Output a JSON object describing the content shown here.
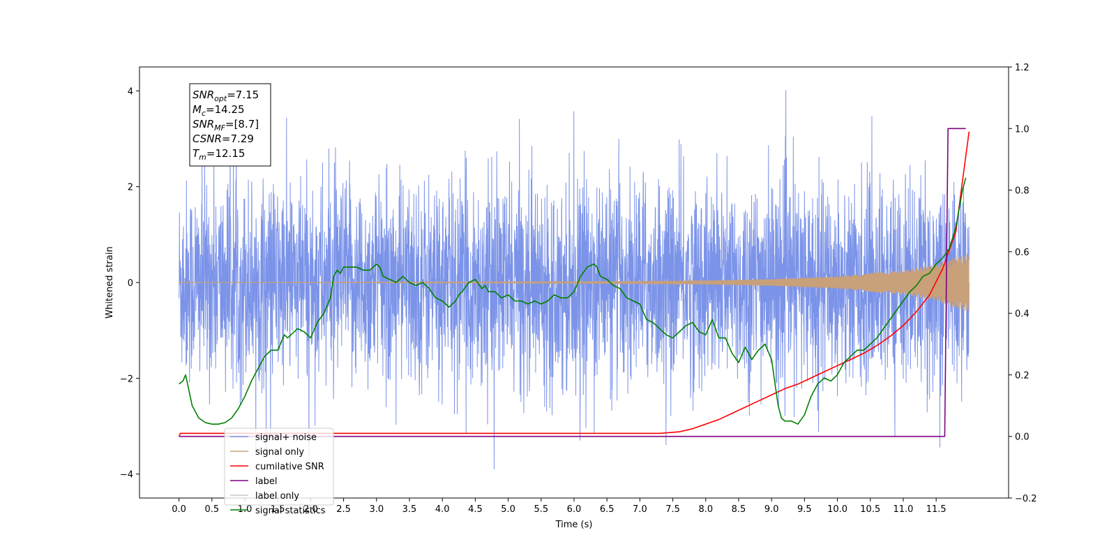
{
  "chart_data": {
    "type": "line",
    "xlabel": "Time (s)",
    "ylabel": "Whitened strain",
    "ylabel_right": "",
    "xlim": [
      -0.6,
      12.6
    ],
    "ylim": [
      -4.5,
      4.5
    ],
    "ylim_right": [
      -0.2,
      1.2
    ],
    "x_ticks": [
      0.0,
      0.5,
      1.0,
      1.5,
      2.0,
      2.5,
      3.0,
      3.5,
      4.0,
      4.5,
      5.0,
      5.5,
      6.0,
      6.5,
      7.0,
      7.5,
      8.0,
      8.5,
      9.0,
      9.5,
      10.0,
      10.5,
      11.0,
      11.5
    ],
    "x_tick_labels": [
      "0.0",
      "0.5",
      "1.0",
      "1.5",
      "2.0",
      "2.5",
      "3.0",
      "3.5",
      "4.0",
      "4.5",
      "5.0",
      "5.5",
      "6.0",
      "6.5",
      "7.0",
      "7.5",
      "8.0",
      "8.5",
      "9.0",
      "9.5",
      "10.0",
      "10.5",
      "11.0",
      "11.5"
    ],
    "y_ticks": [
      -4,
      -2,
      0,
      2,
      4
    ],
    "y_tick_labels": [
      "−4",
      "−2",
      "0",
      "2",
      "4"
    ],
    "y_right_ticks": [
      -0.2,
      0.0,
      0.2,
      0.4,
      0.6,
      0.8,
      1.0,
      1.2
    ],
    "y_right_tick_labels": [
      "−0.2",
      "0.0",
      "0.2",
      "0.4",
      "0.6",
      "0.8",
      "1.0",
      "1.2"
    ],
    "grid": false,
    "legend_position": "lower-left",
    "info_box": {
      "lines": [
        {
          "base": "SNR",
          "sub": "opt",
          "rest": "=7.15"
        },
        {
          "base": "M",
          "sub": "c",
          "rest": "=14.25"
        },
        {
          "base": "SNR",
          "sub": "MF",
          "rest": "=[8.7]"
        },
        {
          "base": "CSNR",
          "sub": "",
          "rest": "=7.29"
        },
        {
          "base": "T",
          "sub": "m",
          "rest": "=12.15"
        }
      ]
    },
    "series": [
      {
        "name": "signal+ noise",
        "color": "#7b93e8",
        "axis": "left",
        "kind": "noise",
        "x_range": [
          0.0,
          12.0
        ],
        "envelope_typical": 2.2,
        "envelope_max": 4.1,
        "envelope_min": -3.9
      },
      {
        "name": "signal only",
        "color": "#c8a07a",
        "axis": "left",
        "kind": "chirp",
        "x_range": [
          0.0,
          12.0
        ],
        "amplitude_points": [
          [
            0.0,
            0.0
          ],
          [
            7.0,
            0.02
          ],
          [
            8.0,
            0.04
          ],
          [
            9.0,
            0.07
          ],
          [
            10.0,
            0.13
          ],
          [
            11.0,
            0.25
          ],
          [
            11.5,
            0.38
          ],
          [
            12.0,
            0.62
          ]
        ]
      },
      {
        "name": "cumilative SNR",
        "color": "#ff0000",
        "axis": "right",
        "x": [
          0.0,
          0.02,
          1.0,
          2.0,
          3.0,
          4.0,
          5.0,
          6.0,
          7.0,
          7.3,
          7.6,
          7.8,
          8.0,
          8.2,
          8.4,
          8.6,
          8.8,
          9.0,
          9.2,
          9.4,
          9.6,
          9.8,
          10.0,
          10.2,
          10.4,
          10.6,
          10.8,
          11.0,
          11.2,
          11.4,
          11.6,
          11.8,
          11.9,
          12.0
        ],
        "y": [
          0.0,
          0.01,
          0.01,
          0.01,
          0.01,
          0.01,
          0.01,
          0.01,
          0.01,
          0.01,
          0.015,
          0.025,
          0.04,
          0.055,
          0.075,
          0.095,
          0.115,
          0.135,
          0.155,
          0.17,
          0.19,
          0.21,
          0.23,
          0.25,
          0.27,
          0.295,
          0.325,
          0.36,
          0.405,
          0.46,
          0.545,
          0.665,
          0.83,
          0.99
        ]
      },
      {
        "name": "label",
        "color": "#800080",
        "axis": "right",
        "x": [
          0.0,
          11.63,
          11.68,
          11.68,
          11.95
        ],
        "y": [
          0.0,
          0.0,
          1.0,
          1.0,
          1.0
        ]
      },
      {
        "name": "label only",
        "color": "#c8c8c8",
        "axis": "right",
        "hidden_in_plot": true,
        "x": [],
        "y": []
      },
      {
        "name": "signal statistics",
        "color": "#008000",
        "axis": "right",
        "x": [
          0.0,
          0.06,
          0.1,
          0.2,
          0.3,
          0.4,
          0.5,
          0.6,
          0.7,
          0.8,
          0.9,
          1.0,
          1.1,
          1.2,
          1.3,
          1.4,
          1.5,
          1.6,
          1.65,
          1.7,
          1.8,
          1.9,
          2.0,
          2.1,
          2.2,
          2.3,
          2.35,
          2.4,
          2.45,
          2.5,
          2.55,
          2.6,
          2.7,
          2.8,
          2.9,
          3.0,
          3.05,
          3.1,
          3.2,
          3.3,
          3.4,
          3.5,
          3.6,
          3.7,
          3.8,
          3.9,
          4.0,
          4.1,
          4.2,
          4.25,
          4.3,
          4.4,
          4.5,
          4.6,
          4.65,
          4.7,
          4.8,
          4.9,
          5.0,
          5.1,
          5.2,
          5.3,
          5.4,
          5.5,
          5.6,
          5.7,
          5.8,
          5.9,
          6.0,
          6.1,
          6.2,
          6.3,
          6.35,
          6.4,
          6.5,
          6.6,
          6.7,
          6.8,
          6.9,
          7.0,
          7.1,
          7.2,
          7.3,
          7.4,
          7.5,
          7.6,
          7.7,
          7.8,
          7.9,
          8.0,
          8.1,
          8.2,
          8.3,
          8.4,
          8.5,
          8.6,
          8.7,
          8.8,
          8.9,
          9.0,
          9.1,
          9.15,
          9.2,
          9.3,
          9.4,
          9.5,
          9.6,
          9.7,
          9.8,
          9.9,
          10.0,
          10.1,
          10.2,
          10.3,
          10.4,
          10.5,
          10.6,
          10.7,
          10.8,
          10.9,
          11.0,
          11.1,
          11.2,
          11.3,
          11.4,
          11.5,
          11.6,
          11.7,
          11.8,
          11.9,
          11.95
        ],
        "y": [
          0.17,
          0.18,
          0.2,
          0.1,
          0.06,
          0.045,
          0.04,
          0.04,
          0.045,
          0.06,
          0.09,
          0.13,
          0.18,
          0.22,
          0.26,
          0.28,
          0.28,
          0.33,
          0.32,
          0.33,
          0.35,
          0.34,
          0.32,
          0.37,
          0.4,
          0.45,
          0.52,
          0.54,
          0.53,
          0.55,
          0.55,
          0.55,
          0.55,
          0.54,
          0.54,
          0.56,
          0.55,
          0.52,
          0.51,
          0.5,
          0.52,
          0.5,
          0.49,
          0.5,
          0.48,
          0.45,
          0.44,
          0.42,
          0.44,
          0.46,
          0.47,
          0.5,
          0.51,
          0.48,
          0.49,
          0.47,
          0.47,
          0.45,
          0.46,
          0.44,
          0.44,
          0.43,
          0.44,
          0.43,
          0.44,
          0.46,
          0.45,
          0.45,
          0.47,
          0.52,
          0.55,
          0.56,
          0.55,
          0.52,
          0.51,
          0.49,
          0.48,
          0.45,
          0.44,
          0.43,
          0.38,
          0.37,
          0.35,
          0.33,
          0.32,
          0.34,
          0.36,
          0.37,
          0.34,
          0.33,
          0.38,
          0.32,
          0.32,
          0.27,
          0.24,
          0.29,
          0.25,
          0.28,
          0.3,
          0.25,
          0.1,
          0.06,
          0.05,
          0.05,
          0.04,
          0.07,
          0.13,
          0.17,
          0.19,
          0.18,
          0.2,
          0.24,
          0.26,
          0.28,
          0.28,
          0.3,
          0.32,
          0.35,
          0.38,
          0.41,
          0.44,
          0.47,
          0.49,
          0.52,
          0.53,
          0.56,
          0.58,
          0.61,
          0.68,
          0.8,
          0.84
        ]
      }
    ]
  }
}
